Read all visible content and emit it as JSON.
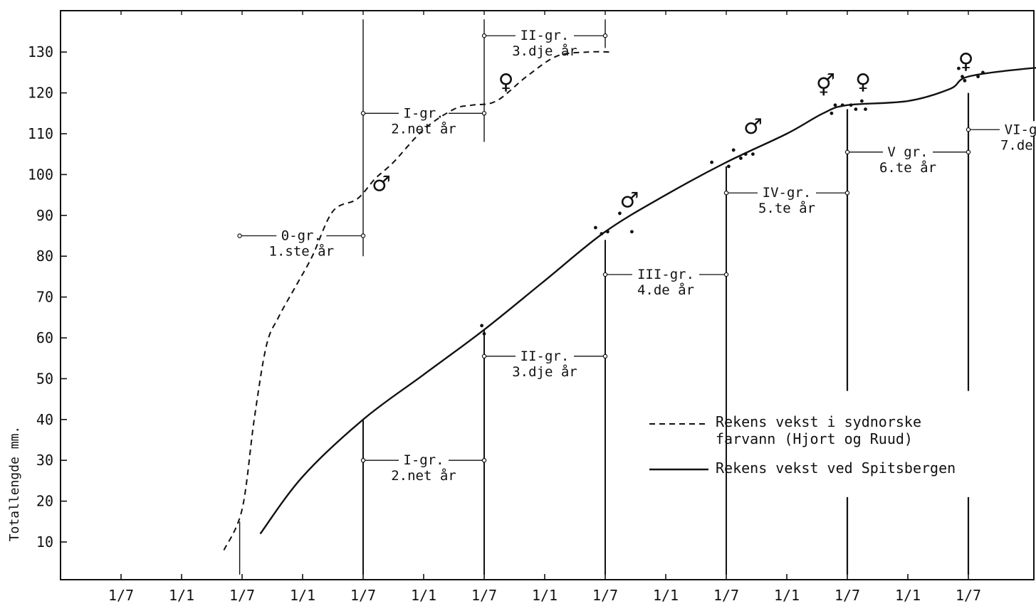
{
  "chart_data": {
    "type": "line",
    "title": "",
    "xlabel": "",
    "ylabel": "Totallengde mm.",
    "ylim": [
      2,
      140
    ],
    "yticks": [
      10,
      20,
      30,
      40,
      50,
      60,
      70,
      80,
      90,
      100,
      110,
      120,
      130
    ],
    "xticks": [
      "1/7",
      "1/1",
      "1/7",
      "1/1",
      "1/7",
      "1/1",
      "1/7",
      "1/1",
      "1/7",
      "1/1",
      "1/7",
      "1/1",
      "1/7",
      "1/1",
      "1/7"
    ],
    "xlim": [
      -0.2,
      7.55
    ],
    "grid": false,
    "legend_position": "bottom-right",
    "series": [
      {
        "name": "Rekens vekst i sydnorske farvann (Hjort og Ruud)",
        "style": "dashed",
        "x": [
          -0.15,
          0.0,
          0.1,
          0.2,
          0.3,
          0.45,
          0.58,
          0.75,
          0.95,
          1.1,
          1.25,
          1.5,
          1.75,
          1.9,
          2.1,
          2.35,
          2.6,
          2.85,
          3.05
        ],
        "y": [
          8,
          18,
          40,
          58,
          65,
          73,
          80,
          91,
          94,
          99,
          103,
          111,
          116,
          117,
          118,
          124,
          129,
          130,
          130
        ]
      },
      {
        "name": "Rekens vekst ved Spitsbergen",
        "style": "solid",
        "x": [
          0.15,
          0.5,
          1.0,
          1.5,
          2.0,
          2.5,
          3.0,
          3.5,
          4.0,
          4.5,
          4.8,
          5.0,
          5.5,
          5.85,
          6.0,
          6.5,
          7.0,
          7.35
        ],
        "y": [
          12,
          26,
          40,
          51,
          62,
          74,
          86,
          95,
          103,
          110,
          115,
          117,
          118,
          121,
          124,
          126,
          127,
          129
        ]
      }
    ],
    "scatter_points": [
      [
        1.98,
        63
      ],
      [
        2.0,
        61
      ],
      [
        2.92,
        87
      ],
      [
        2.97,
        85.5
      ],
      [
        3.02,
        86
      ],
      [
        3.12,
        90.5
      ],
      [
        3.22,
        86
      ],
      [
        3.88,
        103
      ],
      [
        4.02,
        102
      ],
      [
        4.06,
        106
      ],
      [
        4.12,
        104
      ],
      [
        4.16,
        105
      ],
      [
        4.22,
        105
      ],
      [
        4.87,
        115
      ],
      [
        4.9,
        117
      ],
      [
        4.96,
        117
      ],
      [
        5.03,
        117
      ],
      [
        5.07,
        116
      ],
      [
        5.12,
        118
      ],
      [
        5.15,
        116
      ],
      [
        5.92,
        126
      ],
      [
        5.95,
        124
      ],
      [
        5.97,
        123
      ],
      [
        6.08,
        124
      ],
      [
        6.12,
        125
      ],
      [
        6.92,
        129
      ],
      [
        6.98,
        130
      ],
      [
        7.02,
        131
      ],
      [
        7.1,
        128
      ],
      [
        7.2,
        127
      ],
      [
        7.27,
        126
      ]
    ],
    "group_intervals": [
      {
        "series": "Rekens vekst i sydnorske farvann (Hjort og Ruud)",
        "line1": "0-gr.",
        "line2": "1.ste år",
        "x_start": -0.02,
        "x_end": 1.0,
        "y": 85
      },
      {
        "series": "Rekens vekst i sydnorske farvann (Hjort og Ruud)",
        "line1": "I-gr.",
        "line2": "2.net år",
        "x_start": 1.0,
        "x_end": 2.0,
        "y": 115
      },
      {
        "series": "Rekens vekst i sydnorske farvann (Hjort og Ruud)",
        "line1": "II-gr.",
        "line2": "3.dje år",
        "x_start": 2.0,
        "x_end": 3.0,
        "y": 134
      },
      {
        "series": "Rekens vekst ved Spitsbergen",
        "line1": "I-gr.",
        "line2": "2.net år",
        "x_start": 1.0,
        "x_end": 2.0,
        "y": 30
      },
      {
        "series": "Rekens vekst ved Spitsbergen",
        "line1": "II-gr.",
        "line2": "3.dje år",
        "x_start": 2.0,
        "x_end": 3.0,
        "y": 55.5
      },
      {
        "series": "Rekens vekst ved Spitsbergen",
        "line1": "III-gr.",
        "line2": "4.de år",
        "x_start": 3.0,
        "x_end": 4.0,
        "y": 75.5
      },
      {
        "series": "Rekens vekst ved Spitsbergen",
        "line1": "IV-gr.",
        "line2": "5.te år",
        "x_start": 4.0,
        "x_end": 5.0,
        "y": 95.5
      },
      {
        "series": "Rekens vekst ved Spitsbergen",
        "line1": "V gr.",
        "line2": "6.te år",
        "x_start": 5.0,
        "x_end": 6.0,
        "y": 105.5
      },
      {
        "series": "Rekens vekst ved Spitsbergen",
        "line1": "VI-gr.",
        "line2": "7.de år",
        "x_start": 6.0,
        "x_end": 7.0,
        "y": 111
      }
    ],
    "sex_symbols": [
      {
        "symbol": "♂",
        "x": 1.15,
        "y": 96
      },
      {
        "symbol": "♀",
        "x": 2.18,
        "y": 121
      },
      {
        "symbol": "♂",
        "x": 3.2,
        "y": 92
      },
      {
        "symbol": "♂",
        "x": 4.22,
        "y": 110
      },
      {
        "symbol": "⚥",
        "x": 4.82,
        "y": 120
      },
      {
        "symbol": "♀",
        "x": 5.13,
        "y": 121
      },
      {
        "symbol": "♀",
        "x": 5.98,
        "y": 126
      },
      {
        "symbol": "♀",
        "x": 7.03,
        "y": 134
      }
    ]
  }
}
